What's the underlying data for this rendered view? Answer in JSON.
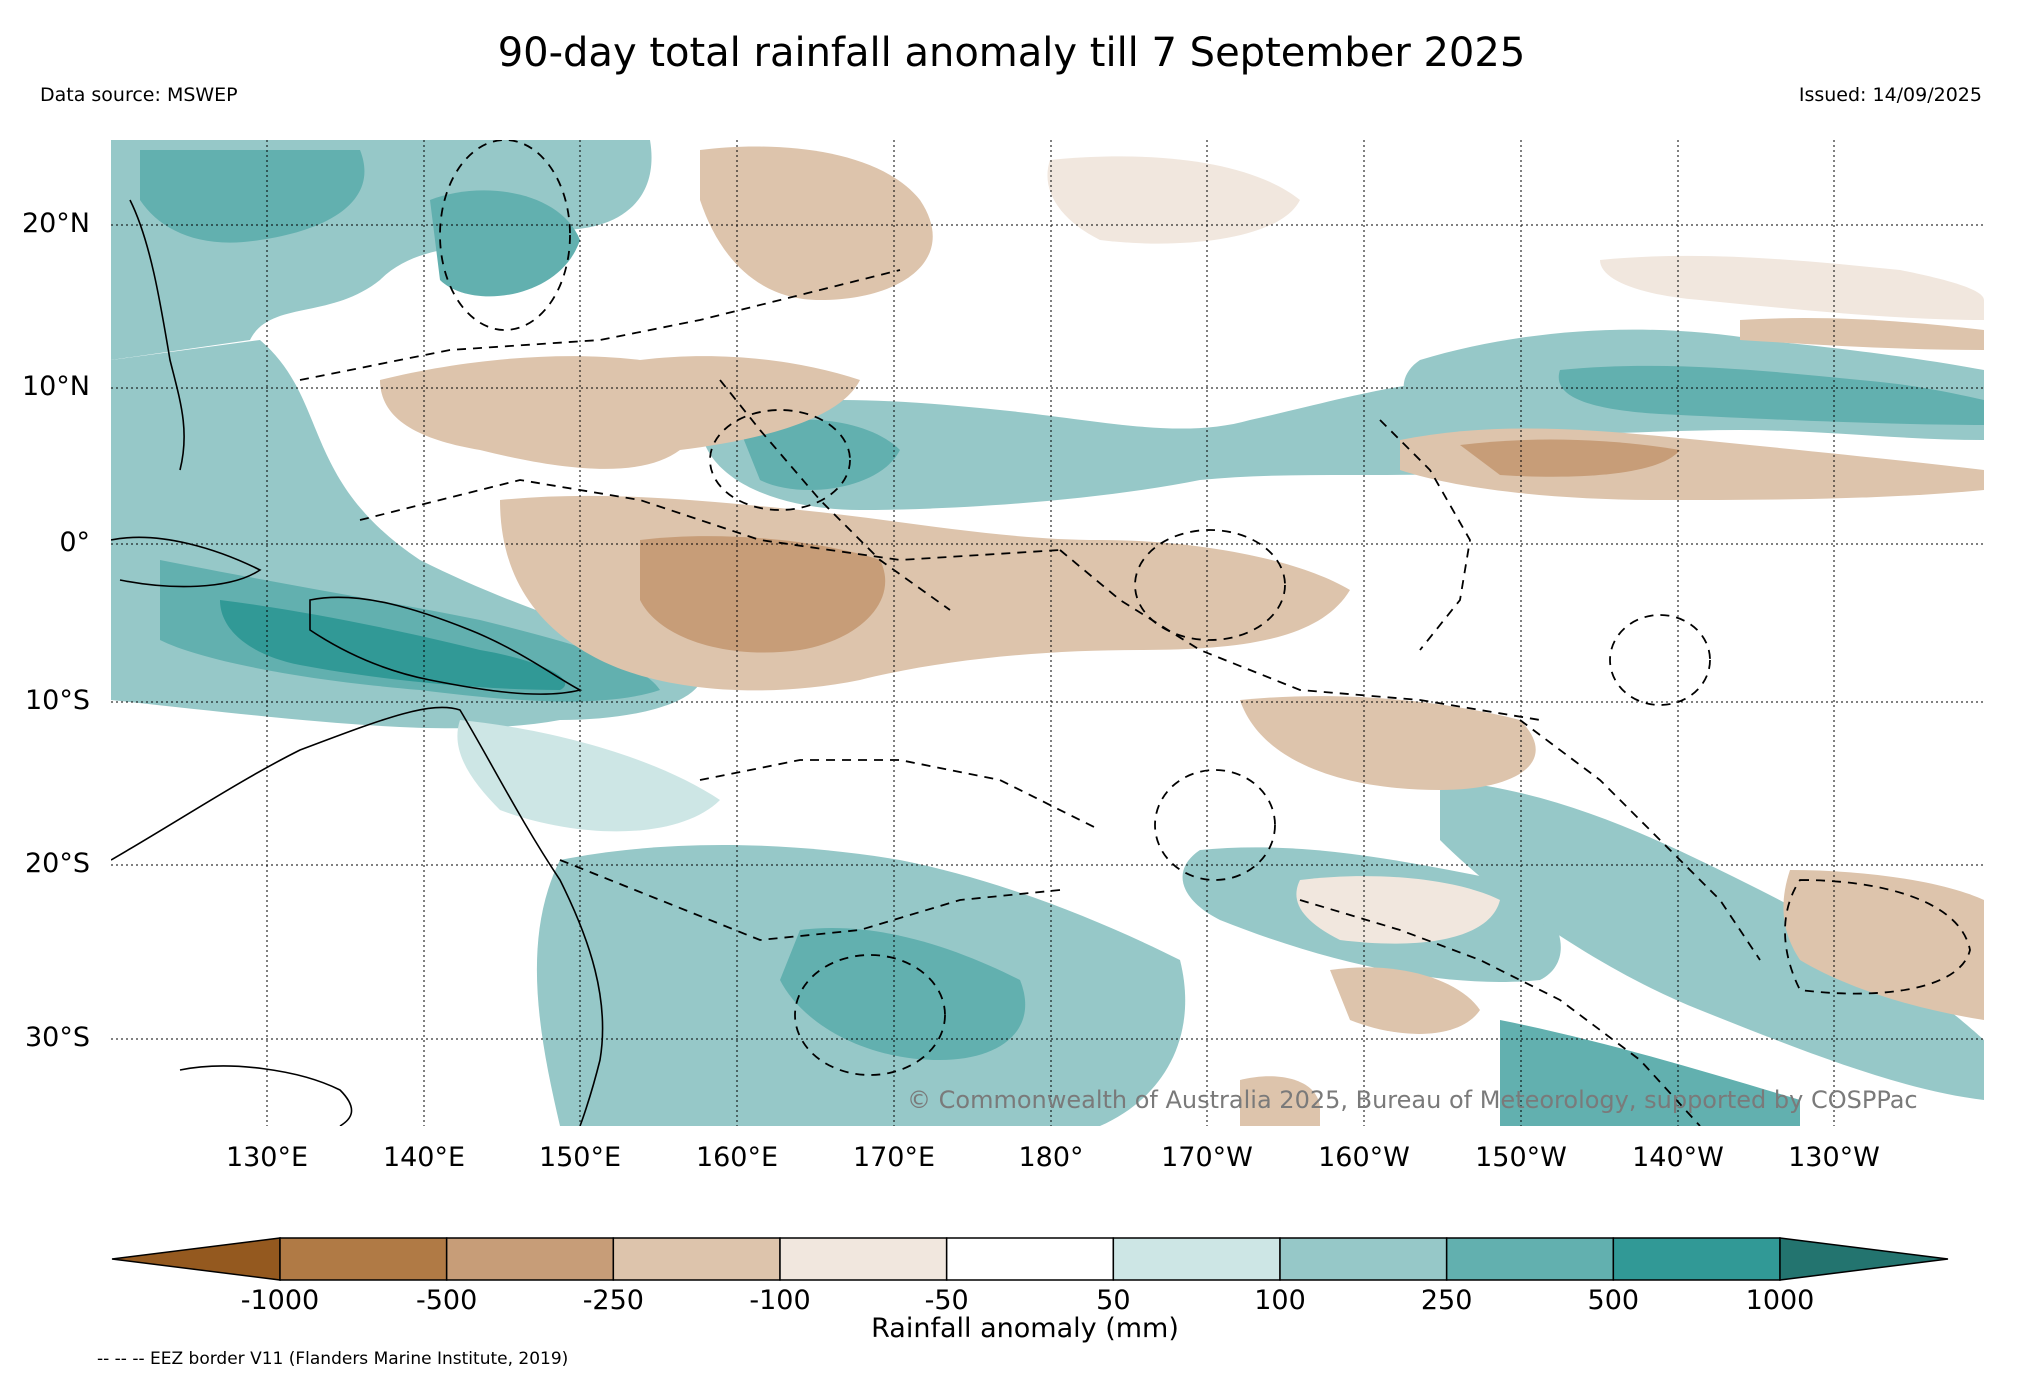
{
  "title": "90-day total rainfall anomaly till 7 September 2025",
  "data_source": "Data source: MSWEP",
  "issued": "Issued: 14/09/2025",
  "copyright": "© Commonwealth of Australia 2025, Bureau of Meteorology, supported by COSPPac",
  "lat_labels": [
    "20°N",
    "10°N",
    "0°",
    "10°S",
    "20°S",
    "30°S"
  ],
  "lon_labels": [
    "130°E",
    "140°E",
    "150°E",
    "160°E",
    "170°E",
    "180°",
    "170°W",
    "160°W",
    "150°W",
    "140°W",
    "130°W"
  ],
  "colorbar": {
    "title": "Rainfall anomaly (mm)",
    "tick_labels": [
      "-1000",
      "-500",
      "-250",
      "-100",
      "-50",
      "50",
      "100",
      "250",
      "500",
      "1000"
    ],
    "colors": [
      "#94591f",
      "#b07a45",
      "#c79d78",
      "#ddc4ac",
      "#f1e7de",
      "#ffffff",
      "#cde6e5",
      "#96c8c8",
      "#62b0af",
      "#319996",
      "#23746f"
    ]
  },
  "legend_note": "-- -- -- EEZ border V11 (Flanders Marine Institute, 2019)",
  "colors": {
    "dry_strong": "#c79d78",
    "dry_moderate": "#ddc4ac",
    "dry_weak": "#f1e7de",
    "wet_weak": "#cde6e5",
    "wet_moderate": "#96c8c8",
    "wet_strong": "#62b0af",
    "wet_very_strong": "#319996"
  }
}
